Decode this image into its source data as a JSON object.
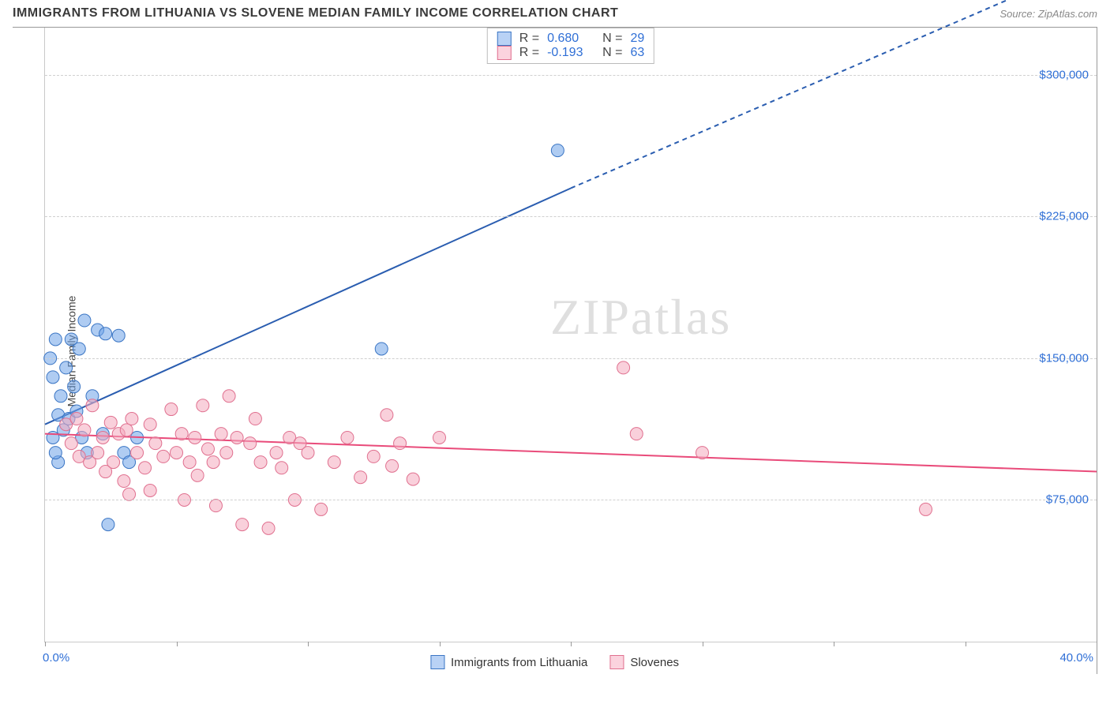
{
  "title": "IMMIGRANTS FROM LITHUANIA VS SLOVENE MEDIAN FAMILY INCOME CORRELATION CHART",
  "source": "Source: ZipAtlas.com",
  "watermark": "ZIPatlas",
  "chart": {
    "type": "scatter",
    "ylabel": "Median Family Income",
    "xlim": [
      0,
      40
    ],
    "ylim": [
      0,
      325000
    ],
    "yticks": [
      75000,
      150000,
      225000,
      300000
    ],
    "ytick_labels": [
      "$75,000",
      "$150,000",
      "$225,000",
      "$300,000"
    ],
    "xtick_positions": [
      0,
      5,
      10,
      15,
      20,
      25,
      30,
      35,
      40
    ],
    "xaxis_min_label": "0.0%",
    "xaxis_max_label": "40.0%",
    "background_color": "#ffffff",
    "grid_color": "#d0d0d0",
    "marker_radius": 8,
    "marker_opacity": 0.55,
    "series": [
      {
        "name": "Immigrants from Lithuania",
        "color": "#6ea3e8",
        "stroke": "#3a75c4",
        "R": "0.680",
        "N": "29",
        "trend": {
          "x1": 0,
          "y1": 115000,
          "x2_solid": 20,
          "y2_solid": 240000,
          "x2": 40,
          "y2": 360000,
          "color": "#2a5db0",
          "width": 2
        },
        "points": [
          [
            0.2,
            150000
          ],
          [
            0.3,
            140000
          ],
          [
            0.4,
            160000
          ],
          [
            0.5,
            120000
          ],
          [
            0.6,
            130000
          ],
          [
            0.8,
            145000
          ],
          [
            0.9,
            118000
          ],
          [
            1.0,
            160000
          ],
          [
            1.1,
            135000
          ],
          [
            1.3,
            155000
          ],
          [
            1.4,
            108000
          ],
          [
            1.5,
            170000
          ],
          [
            1.6,
            100000
          ],
          [
            2.0,
            165000
          ],
          [
            2.2,
            110000
          ],
          [
            2.3,
            163000
          ],
          [
            2.4,
            62000
          ],
          [
            2.8,
            162000
          ],
          [
            3.0,
            100000
          ],
          [
            3.2,
            95000
          ],
          [
            3.5,
            108000
          ],
          [
            12.8,
            155000
          ],
          [
            19.5,
            260000
          ],
          [
            0.3,
            108000
          ],
          [
            0.5,
            95000
          ],
          [
            0.7,
            112000
          ],
          [
            1.2,
            122000
          ],
          [
            1.8,
            130000
          ],
          [
            0.4,
            100000
          ]
        ]
      },
      {
        "name": "Slovenes",
        "color": "#f4a9bd",
        "stroke": "#e0708f",
        "R": "-0.193",
        "N": "63",
        "trend": {
          "x1": 0,
          "y1": 110000,
          "x2_solid": 40,
          "y2_solid": 90000,
          "x2": 40,
          "y2": 90000,
          "color": "#e94b7a",
          "width": 2
        },
        "points": [
          [
            0.8,
            115000
          ],
          [
            1.0,
            105000
          ],
          [
            1.2,
            118000
          ],
          [
            1.3,
            98000
          ],
          [
            1.5,
            112000
          ],
          [
            1.7,
            95000
          ],
          [
            1.8,
            125000
          ],
          [
            2.0,
            100000
          ],
          [
            2.2,
            108000
          ],
          [
            2.3,
            90000
          ],
          [
            2.5,
            116000
          ],
          [
            2.6,
            95000
          ],
          [
            2.8,
            110000
          ],
          [
            3.0,
            85000
          ],
          [
            3.1,
            112000
          ],
          [
            3.3,
            118000
          ],
          [
            3.5,
            100000
          ],
          [
            3.8,
            92000
          ],
          [
            4.0,
            115000
          ],
          [
            4.2,
            105000
          ],
          [
            4.5,
            98000
          ],
          [
            4.8,
            123000
          ],
          [
            5.0,
            100000
          ],
          [
            5.2,
            110000
          ],
          [
            5.5,
            95000
          ],
          [
            5.7,
            108000
          ],
          [
            5.8,
            88000
          ],
          [
            6.0,
            125000
          ],
          [
            6.2,
            102000
          ],
          [
            6.4,
            95000
          ],
          [
            6.5,
            72000
          ],
          [
            6.7,
            110000
          ],
          [
            6.9,
            100000
          ],
          [
            7.0,
            130000
          ],
          [
            7.3,
            108000
          ],
          [
            7.5,
            62000
          ],
          [
            7.8,
            105000
          ],
          [
            8.0,
            118000
          ],
          [
            8.2,
            95000
          ],
          [
            8.5,
            60000
          ],
          [
            8.8,
            100000
          ],
          [
            9.0,
            92000
          ],
          [
            9.3,
            108000
          ],
          [
            9.5,
            75000
          ],
          [
            9.7,
            105000
          ],
          [
            10.0,
            100000
          ],
          [
            10.5,
            70000
          ],
          [
            11.0,
            95000
          ],
          [
            11.5,
            108000
          ],
          [
            12.0,
            87000
          ],
          [
            12.5,
            98000
          ],
          [
            13.0,
            120000
          ],
          [
            13.2,
            93000
          ],
          [
            13.5,
            105000
          ],
          [
            14.0,
            86000
          ],
          [
            15.0,
            108000
          ],
          [
            22.0,
            145000
          ],
          [
            22.5,
            110000
          ],
          [
            25.0,
            100000
          ],
          [
            33.5,
            70000
          ],
          [
            3.2,
            78000
          ],
          [
            5.3,
            75000
          ],
          [
            4.0,
            80000
          ]
        ]
      }
    ],
    "legend": {
      "items": [
        {
          "label": "Immigrants from Lithuania",
          "fill": "#b9d2f5",
          "stroke": "#3a75c4"
        },
        {
          "label": "Slovenes",
          "fill": "#fbd3de",
          "stroke": "#e0708f"
        }
      ]
    },
    "stats_box": {
      "rows": [
        {
          "swatch_fill": "#b9d2f5",
          "swatch_stroke": "#3a75c4",
          "r_label": "R =",
          "r_value": "0.680",
          "n_label": "N =",
          "n_value": "29",
          "value_color": "#2f6fd6"
        },
        {
          "swatch_fill": "#fbd3de",
          "swatch_stroke": "#e0708f",
          "r_label": "R =",
          "r_value": "-0.193",
          "n_label": "N =",
          "n_value": "63",
          "value_color": "#2f6fd6"
        }
      ]
    }
  }
}
